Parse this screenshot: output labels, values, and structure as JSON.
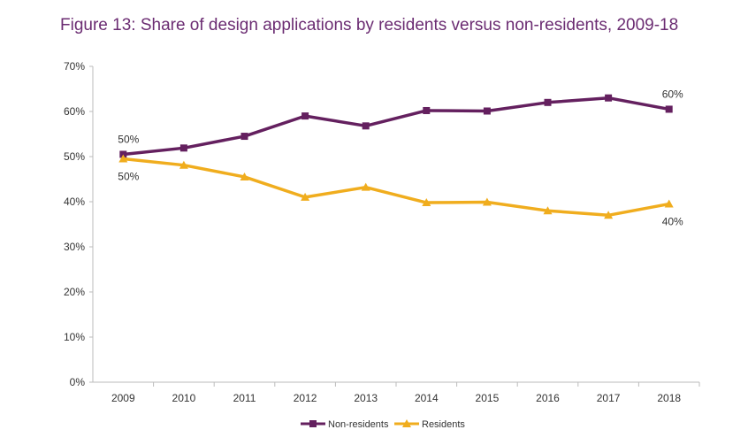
{
  "chart_data": {
    "type": "line",
    "title": "Figure 13: Share of design applications by residents versus non-residents, 2009-18",
    "xlabel": "",
    "ylabel": "",
    "categories": [
      "2009",
      "2010",
      "2011",
      "2012",
      "2013",
      "2014",
      "2015",
      "2016",
      "2017",
      "2018"
    ],
    "ylim": [
      0,
      70
    ],
    "yticks": [
      "0%",
      "10%",
      "20%",
      "30%",
      "40%",
      "50%",
      "60%",
      "70%"
    ],
    "grid": false,
    "legend": "bottom",
    "series": [
      {
        "name": "Non-residents",
        "color": "#64205f",
        "marker": "square",
        "values": [
          50.5,
          51.9,
          54.5,
          59.0,
          56.8,
          60.2,
          60.1,
          62.0,
          63.0,
          60.5
        ],
        "labels": {
          "0": "50%",
          "9": "60%"
        }
      },
      {
        "name": "Residents",
        "color": "#f0ad1e",
        "marker": "triangle",
        "values": [
          49.5,
          48.1,
          45.5,
          41.0,
          43.2,
          39.8,
          39.9,
          38.0,
          37.0,
          39.5
        ],
        "labels": {
          "0": "50%",
          "9": "40%"
        }
      }
    ]
  }
}
